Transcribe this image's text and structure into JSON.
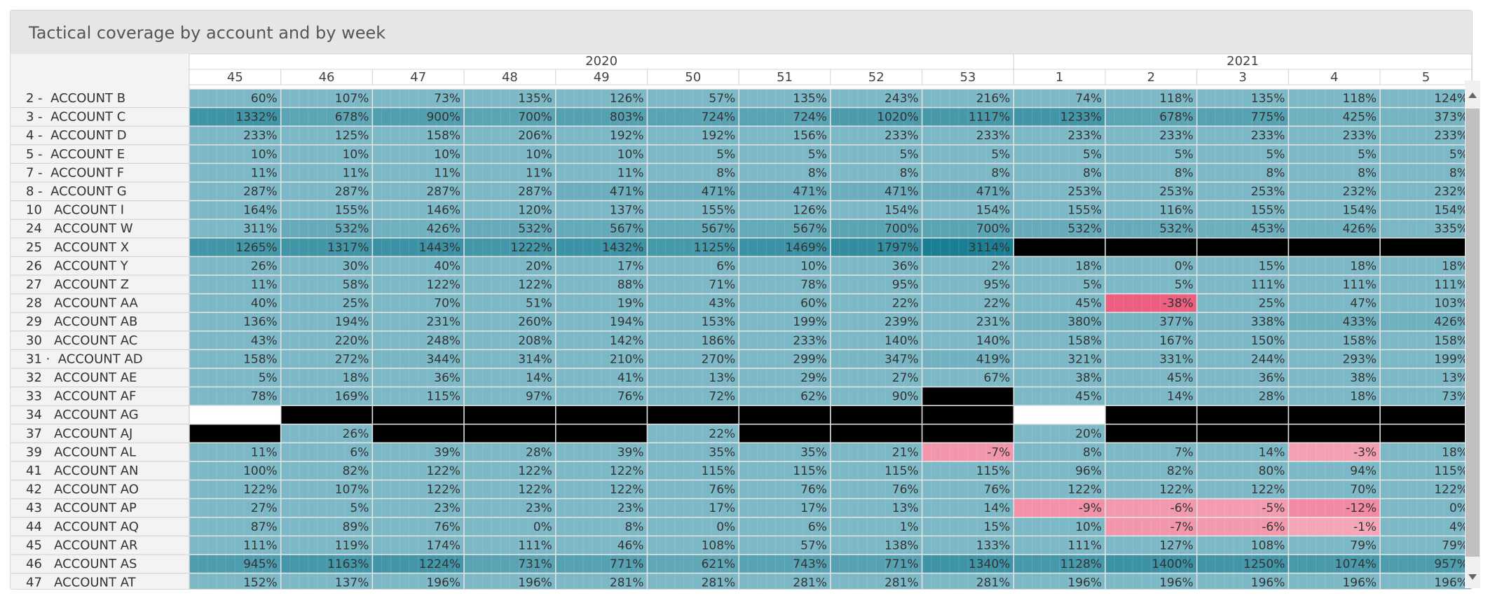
{
  "title": "Tactical coverage by account and by week",
  "chart_data": {
    "type": "heatmap",
    "title": "Tactical coverage by account and by week",
    "years": [
      {
        "label": "2020",
        "weeks": [
          "45",
          "46",
          "47",
          "48",
          "49",
          "50",
          "51",
          "52",
          "53"
        ]
      },
      {
        "label": "2021",
        "weeks": [
          "1",
          "2",
          "3",
          "4",
          "5"
        ]
      }
    ],
    "weeks": [
      "45",
      "46",
      "47",
      "48",
      "49",
      "50",
      "51",
      "52",
      "53",
      "1",
      "2",
      "3",
      "4",
      "5"
    ],
    "rows": [
      {
        "account": "2 -  ACCOUNT B",
        "values": [
          60,
          107,
          73,
          135,
          126,
          57,
          135,
          243,
          216,
          74,
          118,
          135,
          118,
          124
        ]
      },
      {
        "account": "3 -  ACCOUNT C",
        "values": [
          1332,
          678,
          900,
          700,
          803,
          724,
          724,
          1020,
          1117,
          1233,
          678,
          775,
          425,
          373
        ]
      },
      {
        "account": "4 -  ACCOUNT D",
        "values": [
          233,
          125,
          158,
          206,
          192,
          192,
          156,
          233,
          233,
          233,
          233,
          233,
          233,
          233
        ]
      },
      {
        "account": "5 -  ACCOUNT E",
        "values": [
          10,
          10,
          10,
          10,
          10,
          5,
          5,
          5,
          5,
          5,
          5,
          5,
          5,
          5
        ]
      },
      {
        "account": "7 -  ACCOUNT F",
        "values": [
          11,
          11,
          11,
          11,
          11,
          8,
          8,
          8,
          8,
          8,
          8,
          8,
          8,
          8
        ]
      },
      {
        "account": "8 -  ACCOUNT G",
        "values": [
          287,
          287,
          287,
          287,
          471,
          471,
          471,
          471,
          471,
          253,
          253,
          253,
          232,
          232
        ]
      },
      {
        "account": "10   ACCOUNT I",
        "values": [
          164,
          155,
          146,
          120,
          137,
          155,
          126,
          154,
          154,
          155,
          116,
          155,
          154,
          154
        ]
      },
      {
        "account": "24   ACCOUNT W",
        "values": [
          311,
          532,
          426,
          532,
          567,
          567,
          567,
          700,
          700,
          532,
          532,
          453,
          426,
          335
        ]
      },
      {
        "account": "25   ACCOUNT X",
        "values": [
          1265,
          1317,
          1443,
          1222,
          1432,
          1125,
          1469,
          1797,
          3114,
          null,
          null,
          null,
          null,
          null
        ]
      },
      {
        "account": "26   ACCOUNT Y",
        "values": [
          26,
          30,
          40,
          20,
          17,
          6,
          10,
          36,
          2,
          18,
          0,
          15,
          18,
          18
        ]
      },
      {
        "account": "27   ACCOUNT Z",
        "values": [
          11,
          58,
          122,
          122,
          88,
          71,
          78,
          95,
          95,
          5,
          5,
          111,
          111,
          111
        ]
      },
      {
        "account": "28   ACCOUNT AA",
        "values": [
          40,
          25,
          70,
          51,
          19,
          43,
          60,
          22,
          22,
          45,
          -38,
          25,
          47,
          103
        ]
      },
      {
        "account": "29   ACCOUNT AB",
        "values": [
          136,
          194,
          231,
          260,
          194,
          153,
          199,
          239,
          231,
          380,
          377,
          338,
          433,
          426
        ]
      },
      {
        "account": "30   ACCOUNT AC",
        "values": [
          43,
          220,
          248,
          208,
          142,
          186,
          233,
          140,
          140,
          158,
          167,
          150,
          158,
          158
        ]
      },
      {
        "account": "31 ·  ACCOUNT AD",
        "values": [
          158,
          272,
          344,
          314,
          210,
          270,
          299,
          347,
          419,
          321,
          331,
          244,
          293,
          199
        ]
      },
      {
        "account": "32   ACCOUNT AE",
        "values": [
          5,
          18,
          36,
          14,
          41,
          13,
          29,
          27,
          67,
          38,
          45,
          36,
          38,
          13
        ]
      },
      {
        "account": "33   ACCOUNT AF",
        "values": [
          78,
          169,
          115,
          97,
          76,
          72,
          62,
          90,
          null,
          45,
          14,
          28,
          18,
          73
        ]
      },
      {
        "account": "34   ACCOUNT AG",
        "values": [
          "blank",
          null,
          null,
          null,
          null,
          null,
          null,
          null,
          null,
          "blank",
          null,
          null,
          null,
          null
        ]
      },
      {
        "account": "37   ACCOUNT AJ",
        "values": [
          null,
          26,
          null,
          null,
          null,
          22,
          null,
          null,
          null,
          20,
          null,
          null,
          null,
          null
        ]
      },
      {
        "account": "39   ACCOUNT AL",
        "values": [
          11,
          6,
          39,
          28,
          39,
          35,
          35,
          21,
          -7,
          8,
          7,
          14,
          -3,
          18
        ]
      },
      {
        "account": "41   ACCOUNT AN",
        "values": [
          100,
          82,
          122,
          122,
          122,
          115,
          115,
          115,
          115,
          96,
          82,
          80,
          94,
          115
        ]
      },
      {
        "account": "42   ACCOUNT AO",
        "values": [
          122,
          107,
          122,
          122,
          122,
          76,
          76,
          76,
          76,
          122,
          122,
          122,
          70,
          122
        ]
      },
      {
        "account": "43   ACCOUNT AP",
        "values": [
          27,
          5,
          23,
          23,
          23,
          17,
          17,
          13,
          14,
          -9,
          -6,
          -5,
          -12,
          0
        ]
      },
      {
        "account": "44   ACCOUNT AQ",
        "values": [
          87,
          89,
          76,
          0,
          8,
          0,
          6,
          1,
          15,
          10,
          -7,
          -6,
          -1,
          4
        ]
      },
      {
        "account": "45   ACCOUNT AR",
        "values": [
          111,
          119,
          174,
          111,
          46,
          108,
          57,
          138,
          133,
          111,
          127,
          108,
          79,
          79
        ]
      },
      {
        "account": "46   ACCOUNT AS",
        "values": [
          945,
          1163,
          1224,
          731,
          771,
          621,
          743,
          771,
          1340,
          1128,
          1400,
          1250,
          1074,
          957
        ]
      },
      {
        "account": "47   ACCOUNT AT",
        "values": [
          152,
          137,
          196,
          196,
          281,
          281,
          281,
          281,
          281,
          196,
          196,
          196,
          196,
          196
        ]
      }
    ],
    "value_suffix": "%",
    "colors": {
      "base": "#7db8c6",
      "high": "#1a7f93",
      "mid": "#4fa3b6",
      "negative_light": "#f4a7b9",
      "negative_strong": "#ec5f80",
      "missing": "#000000",
      "blank": "#ffffff"
    }
  }
}
